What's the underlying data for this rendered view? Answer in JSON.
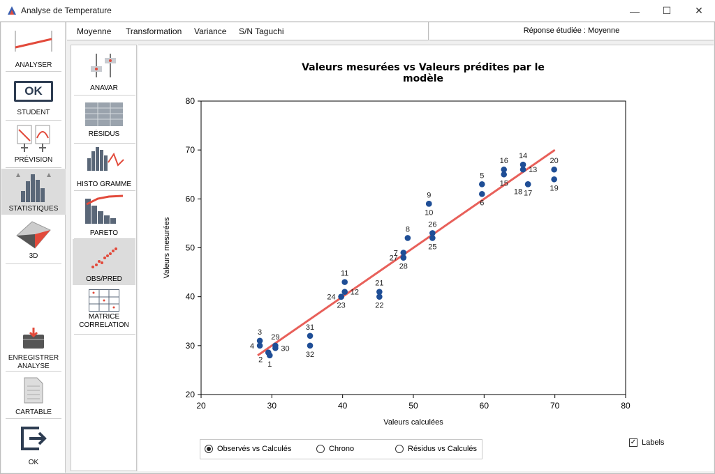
{
  "window": {
    "title": "Analyse de Temperature"
  },
  "sidebar": {
    "items": [
      {
        "label": "ANALYSER"
      },
      {
        "label": "STUDENT",
        "icon_text": "OK"
      },
      {
        "label": "PRÉVISION"
      },
      {
        "label": "STATISTIQUES"
      },
      {
        "label": "3D"
      },
      {
        "label": "ENREGISTRER\nANALYSE"
      },
      {
        "label": "CARTABLE"
      },
      {
        "label": "OK"
      }
    ]
  },
  "menu": {
    "items": [
      "Moyenne",
      "Transformation",
      "Variance",
      "S/N Taguchi"
    ],
    "response": "Réponse étudiée : Moyenne"
  },
  "subsidebar": {
    "items": [
      {
        "label": "ANAVAR"
      },
      {
        "label": "RÉSIDUS"
      },
      {
        "label": "HISTO GRAMME"
      },
      {
        "label": "PARETO"
      },
      {
        "label": "OBS/PRED"
      },
      {
        "label": "MATRICE CORRELATION"
      }
    ]
  },
  "chart_data": {
    "type": "scatter",
    "title": "Valeurs mesurées vs Valeurs prédites par le modèle",
    "xlabel": "Valeurs calculées",
    "ylabel": "Valeurs mesurées",
    "xlim": [
      20,
      80
    ],
    "ylim": [
      20,
      80
    ],
    "xticks": [
      20,
      30,
      40,
      50,
      60,
      70,
      80
    ],
    "yticks": [
      20,
      30,
      40,
      50,
      60,
      70,
      80
    ],
    "point_color": "#1f4e96",
    "line_color": "#e8605a",
    "fit_line": {
      "x": [
        28,
        70
      ],
      "y": [
        28,
        70
      ]
    },
    "points": [
      {
        "label": "1",
        "x": 29.7,
        "y": 28.0
      },
      {
        "label": "2",
        "x": 29.5,
        "y": 28.6
      },
      {
        "label": "3",
        "x": 28.3,
        "y": 31.0
      },
      {
        "label": "4",
        "x": 28.3,
        "y": 30.0
      },
      {
        "label": "5",
        "x": 59.7,
        "y": 63.0
      },
      {
        "label": "6",
        "x": 59.7,
        "y": 61.0
      },
      {
        "label": "7",
        "x": 48.6,
        "y": 49.0
      },
      {
        "label": "8",
        "x": 49.2,
        "y": 52.0
      },
      {
        "label": "9",
        "x": 52.2,
        "y": 59.0
      },
      {
        "label": "10",
        "x": 52.2,
        "y": 59.0
      },
      {
        "label": "11",
        "x": 40.3,
        "y": 43.0
      },
      {
        "label": "12",
        "x": 40.3,
        "y": 41.0
      },
      {
        "label": "13",
        "x": 65.5,
        "y": 66.0
      },
      {
        "label": "14",
        "x": 65.5,
        "y": 67.0
      },
      {
        "label": "15",
        "x": 62.8,
        "y": 65.0
      },
      {
        "label": "16",
        "x": 62.8,
        "y": 66.0
      },
      {
        "label": "17",
        "x": 66.2,
        "y": 63.0
      },
      {
        "label": "18",
        "x": 66.2,
        "y": 63.0
      },
      {
        "label": "19",
        "x": 69.9,
        "y": 64.0
      },
      {
        "label": "20",
        "x": 69.9,
        "y": 66.0
      },
      {
        "label": "21",
        "x": 45.2,
        "y": 41.0
      },
      {
        "label": "22",
        "x": 45.2,
        "y": 40.0
      },
      {
        "label": "23",
        "x": 39.8,
        "y": 40.0
      },
      {
        "label": "24",
        "x": 39.8,
        "y": 40.0
      },
      {
        "label": "25",
        "x": 52.7,
        "y": 52.0
      },
      {
        "label": "26",
        "x": 52.7,
        "y": 53.0
      },
      {
        "label": "27",
        "x": 48.6,
        "y": 48.0
      },
      {
        "label": "28",
        "x": 48.6,
        "y": 48.0
      },
      {
        "label": "29",
        "x": 30.5,
        "y": 30.0
      },
      {
        "label": "30",
        "x": 30.5,
        "y": 29.5
      },
      {
        "label": "31",
        "x": 35.4,
        "y": 32.0
      },
      {
        "label": "32",
        "x": 35.4,
        "y": 30.0
      }
    ]
  },
  "options": {
    "radios": [
      {
        "label": "Observés vs Calculés",
        "selected": true
      },
      {
        "label": "Chrono",
        "selected": false
      },
      {
        "label": "Résidus vs Calculés",
        "selected": false
      }
    ],
    "labels_checkbox": {
      "label": "Labels",
      "checked": true
    }
  }
}
